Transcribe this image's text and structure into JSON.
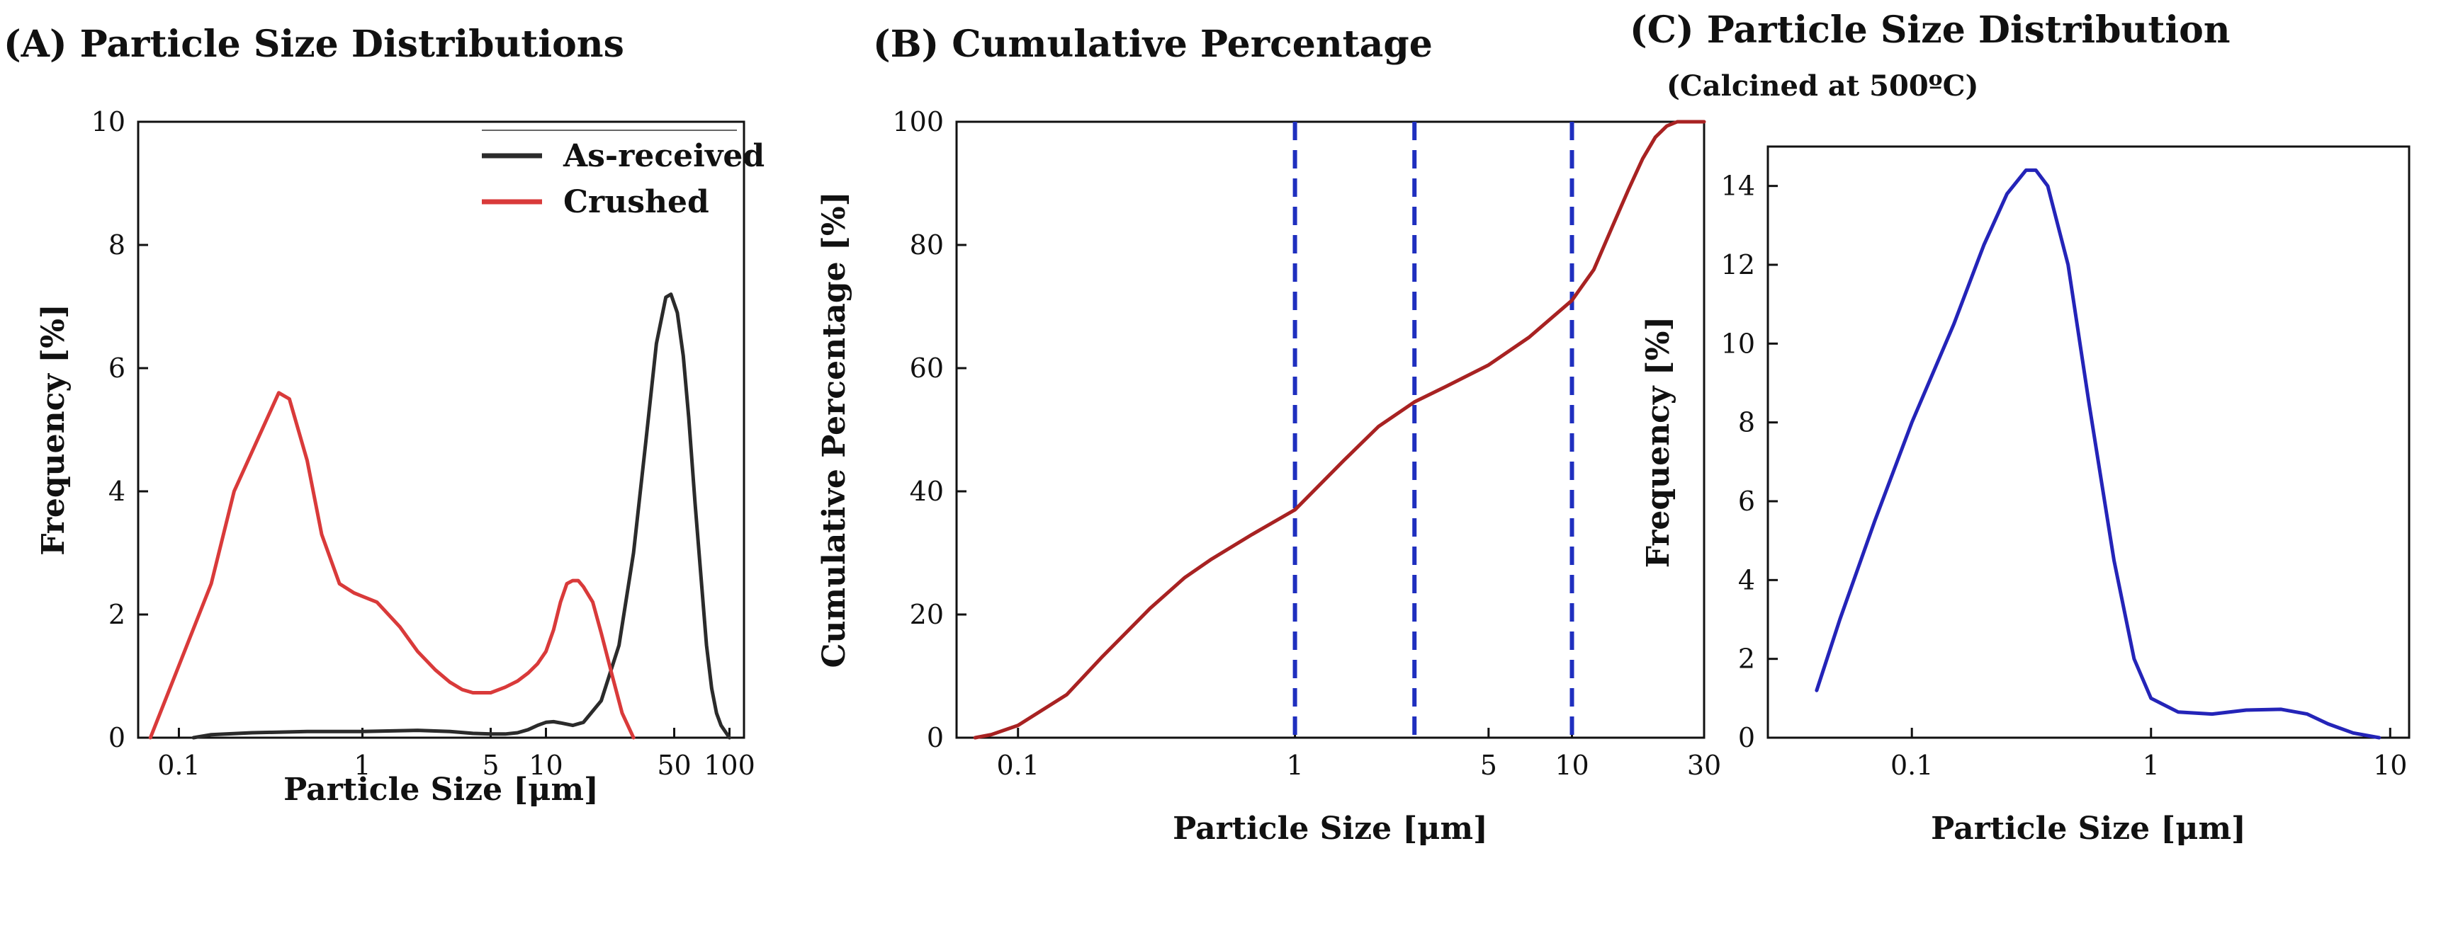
{
  "chart_data": [
    {
      "id": "A",
      "type": "line",
      "title": "(A) Particle Size Distributions",
      "xlabel": "Particle Size [μm]",
      "ylabel": "Frequency [%]",
      "xscale": "log",
      "xlim": [
        0.06,
        120
      ],
      "ylim": [
        0,
        10
      ],
      "xticks": [
        0.1,
        1,
        5,
        10,
        50,
        100
      ],
      "xtick_labels": [
        "0.1",
        "1",
        "5",
        "10",
        "50",
        "100"
      ],
      "yticks": [
        0,
        2,
        4,
        6,
        8,
        10
      ],
      "ytick_labels": [
        "0",
        "2",
        "4",
        "6",
        "8",
        "10"
      ],
      "legend": "top-right",
      "series": [
        {
          "name": "As-received",
          "color": "#2b2b2b",
          "points": [
            [
              0.12,
              0.0
            ],
            [
              0.15,
              0.05
            ],
            [
              0.25,
              0.08
            ],
            [
              0.5,
              0.1
            ],
            [
              1,
              0.1
            ],
            [
              2,
              0.12
            ],
            [
              3,
              0.1
            ],
            [
              4,
              0.07
            ],
            [
              5,
              0.06
            ],
            [
              6,
              0.06
            ],
            [
              7,
              0.08
            ],
            [
              8,
              0.13
            ],
            [
              9,
              0.2
            ],
            [
              10,
              0.25
            ],
            [
              11,
              0.26
            ],
            [
              12,
              0.24
            ],
            [
              14,
              0.2
            ],
            [
              16,
              0.25
            ],
            [
              20,
              0.6
            ],
            [
              25,
              1.5
            ],
            [
              30,
              3.0
            ],
            [
              35,
              4.8
            ],
            [
              40,
              6.4
            ],
            [
              45,
              7.15
            ],
            [
              48,
              7.2
            ],
            [
              52,
              6.9
            ],
            [
              56,
              6.2
            ],
            [
              60,
              5.2
            ],
            [
              65,
              3.8
            ],
            [
              70,
              2.6
            ],
            [
              75,
              1.5
            ],
            [
              80,
              0.8
            ],
            [
              85,
              0.4
            ],
            [
              90,
              0.2
            ],
            [
              100,
              0.0
            ]
          ]
        },
        {
          "name": "Crushed",
          "color": "#d93a3a",
          "points": [
            [
              0.07,
              0.0
            ],
            [
              0.15,
              2.5
            ],
            [
              0.2,
              4.0
            ],
            [
              0.35,
              5.6
            ],
            [
              0.4,
              5.5
            ],
            [
              0.5,
              4.5
            ],
            [
              0.6,
              3.3
            ],
            [
              0.75,
              2.5
            ],
            [
              0.9,
              2.35
            ],
            [
              1.2,
              2.2
            ],
            [
              1.6,
              1.8
            ],
            [
              2,
              1.4
            ],
            [
              2.5,
              1.1
            ],
            [
              3,
              0.9
            ],
            [
              3.5,
              0.78
            ],
            [
              4,
              0.73
            ],
            [
              5,
              0.73
            ],
            [
              6,
              0.82
            ],
            [
              7,
              0.92
            ],
            [
              8,
              1.05
            ],
            [
              9,
              1.2
            ],
            [
              10,
              1.4
            ],
            [
              11,
              1.75
            ],
            [
              12,
              2.2
            ],
            [
              13,
              2.5
            ],
            [
              14,
              2.55
            ],
            [
              15,
              2.55
            ],
            [
              16,
              2.45
            ],
            [
              18,
              2.2
            ],
            [
              20,
              1.7
            ],
            [
              23,
              1.0
            ],
            [
              26,
              0.4
            ],
            [
              30,
              0.0
            ]
          ]
        }
      ]
    },
    {
      "id": "B",
      "type": "line",
      "title": "(B) Cumulative Percentage",
      "xlabel": "Particle Size [μm]",
      "ylabel": "Cumulative Percentage [%]",
      "xscale": "log",
      "xlim": [
        0.06,
        30
      ],
      "ylim": [
        0,
        100
      ],
      "xticks": [
        0.1,
        1,
        5,
        10,
        30
      ],
      "xtick_labels": [
        "0.1",
        "1",
        "5",
        "10",
        "30"
      ],
      "yticks": [
        0,
        20,
        40,
        60,
        80,
        100
      ],
      "ytick_labels": [
        "0",
        "20",
        "40",
        "60",
        "80",
        "100"
      ],
      "vlines": [
        1,
        2.7,
        10
      ],
      "vline_color": "#1f2fbf",
      "series": [
        {
          "name": "Cumulative",
          "color": "#a82222",
          "points": [
            [
              0.07,
              0.0
            ],
            [
              0.08,
              0.5
            ],
            [
              0.1,
              2.0
            ],
            [
              0.15,
              7.0
            ],
            [
              0.2,
              13.0
            ],
            [
              0.3,
              21.0
            ],
            [
              0.4,
              26.0
            ],
            [
              0.5,
              29.0
            ],
            [
              0.7,
              33.0
            ],
            [
              1,
              37.0
            ],
            [
              1.5,
              45.0
            ],
            [
              2,
              50.5
            ],
            [
              2.7,
              54.5
            ],
            [
              3.5,
              57.0
            ],
            [
              5,
              60.5
            ],
            [
              7,
              65.0
            ],
            [
              10,
              71.0
            ],
            [
              12,
              76.0
            ],
            [
              14,
              83.0
            ],
            [
              16,
              89.0
            ],
            [
              18,
              94.0
            ],
            [
              20,
              97.5
            ],
            [
              22,
              99.3
            ],
            [
              24,
              100.0
            ],
            [
              30,
              100.0
            ]
          ]
        }
      ]
    },
    {
      "id": "C",
      "type": "line",
      "title": "(C) Particle Size Distribution",
      "subtitle": "(Calcined at 500ºC)",
      "xlabel": "Particle Size [μm]",
      "ylabel": "Frequency [%]",
      "xscale": "log",
      "xlim": [
        0.025,
        12
      ],
      "ylim": [
        0,
        15
      ],
      "xticks": [
        0.1,
        1,
        10
      ],
      "xtick_labels": [
        "0.1",
        "1",
        "10"
      ],
      "yticks": [
        0,
        2,
        4,
        6,
        8,
        10,
        12,
        14
      ],
      "ytick_labels": [
        "0",
        "2",
        "4",
        "6",
        "8",
        "10",
        "12",
        "14"
      ],
      "series": [
        {
          "name": "Calcined",
          "color": "#2424b8",
          "points": [
            [
              0.04,
              1.2
            ],
            [
              0.05,
              3.0
            ],
            [
              0.07,
              5.5
            ],
            [
              0.1,
              8.0
            ],
            [
              0.15,
              10.5
            ],
            [
              0.2,
              12.5
            ],
            [
              0.25,
              13.8
            ],
            [
              0.3,
              14.4
            ],
            [
              0.33,
              14.4
            ],
            [
              0.37,
              14.0
            ],
            [
              0.45,
              12.0
            ],
            [
              0.55,
              8.5
            ],
            [
              0.7,
              4.5
            ],
            [
              0.85,
              2.0
            ],
            [
              1.0,
              1.0
            ],
            [
              1.3,
              0.65
            ],
            [
              1.8,
              0.6
            ],
            [
              2.5,
              0.7
            ],
            [
              3.5,
              0.72
            ],
            [
              4.5,
              0.6
            ],
            [
              5.5,
              0.35
            ],
            [
              7,
              0.12
            ],
            [
              9,
              0.0
            ]
          ]
        }
      ]
    }
  ]
}
